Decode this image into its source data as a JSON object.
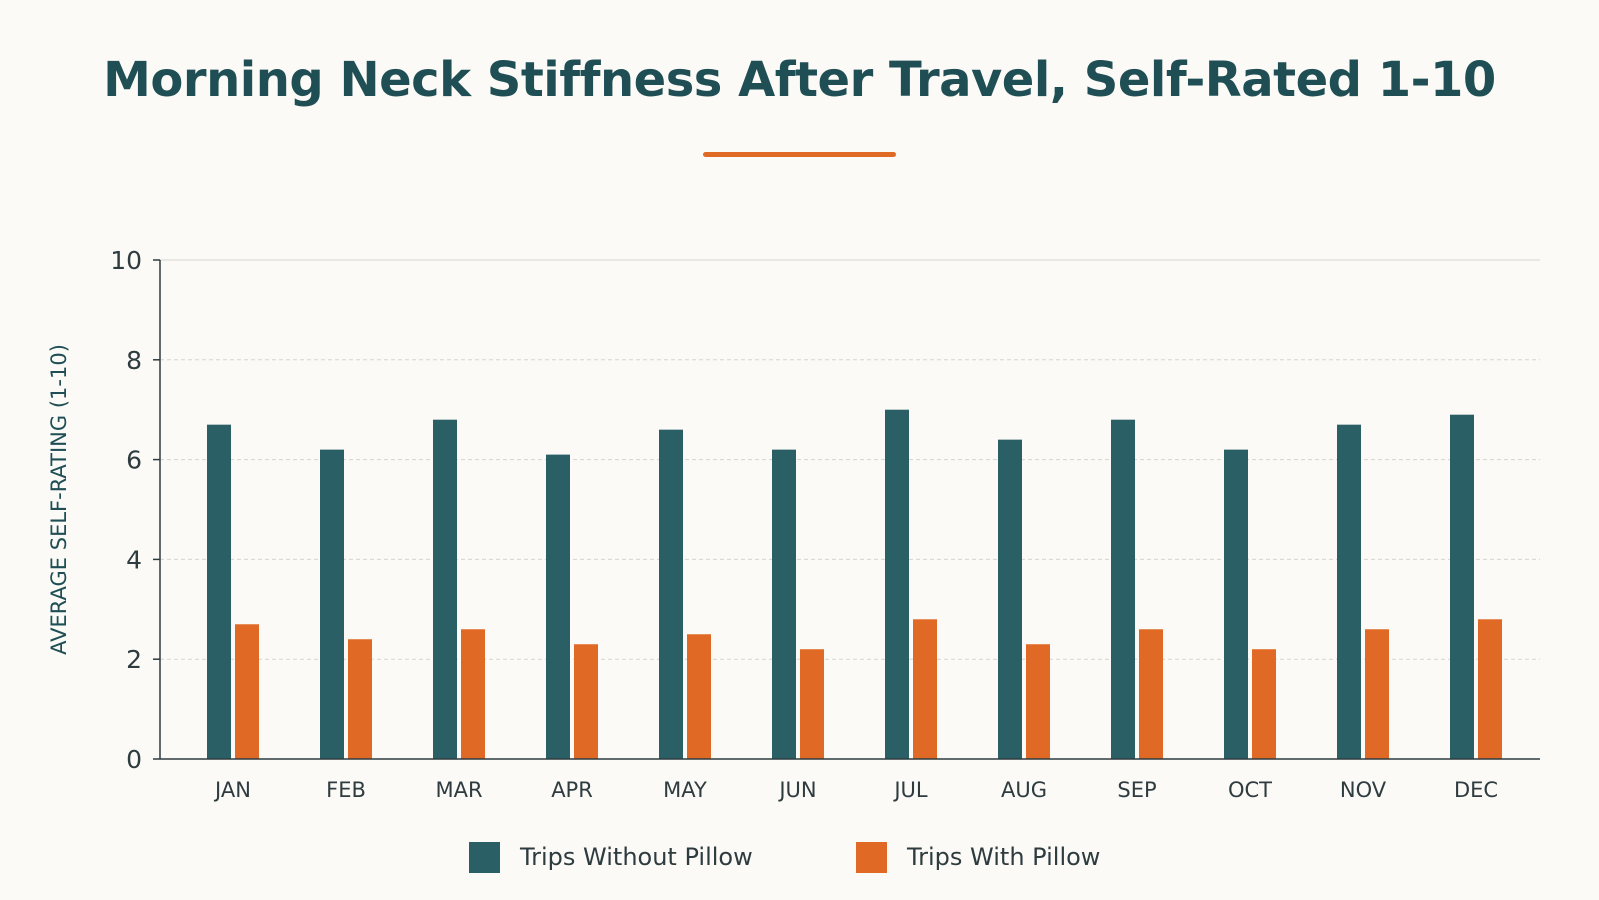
{
  "colors": {
    "accent": "#e06a25",
    "series_without": "#2a6065",
    "series_with": "#e06a25",
    "title": "#1f4f55",
    "axis": "#2e3b3f",
    "grid": "#d6d6d0"
  },
  "chart_data": {
    "type": "bar",
    "title": "Morning Neck Stiffness After Travel, Self-Rated 1-10",
    "xlabel": "",
    "ylabel": "AVERAGE SELF-RATING (1-10)",
    "ylim": [
      0,
      10
    ],
    "yticks": [
      "0",
      "2",
      "4",
      "6",
      "8",
      "10"
    ],
    "grid": true,
    "legend_position": "bottom-center",
    "categories": [
      "JAN",
      "FEB",
      "MAR",
      "APR",
      "MAY",
      "JUN",
      "JUL",
      "AUG",
      "SEP",
      "OCT",
      "NOV",
      "DEC"
    ],
    "series": [
      {
        "name": "Trips Without Pillow",
        "color": "#2a6065",
        "values": [
          6.7,
          6.2,
          6.8,
          6.1,
          6.6,
          6.2,
          7.0,
          6.4,
          6.8,
          6.2,
          6.7,
          6.9
        ]
      },
      {
        "name": "Trips With Pillow",
        "color": "#e06a25",
        "values": [
          2.7,
          2.4,
          2.6,
          2.3,
          2.5,
          2.2,
          2.8,
          2.3,
          2.6,
          2.2,
          2.6,
          2.8
        ]
      }
    ]
  }
}
